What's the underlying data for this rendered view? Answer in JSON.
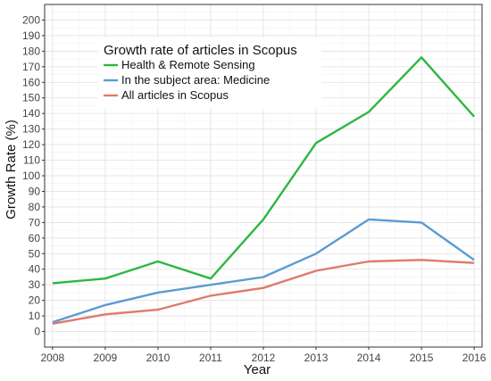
{
  "chart_data": {
    "type": "line",
    "title": "",
    "xlabel": "Year",
    "ylabel": "Growth Rate (%)",
    "x": [
      2008,
      2009,
      2010,
      2011,
      2012,
      2013,
      2014,
      2015,
      2016
    ],
    "ylim": [
      0,
      200
    ],
    "yticks": [
      0,
      10,
      20,
      30,
      40,
      50,
      60,
      70,
      80,
      90,
      100,
      110,
      120,
      130,
      140,
      150,
      160,
      170,
      180,
      190,
      200
    ],
    "grid": true,
    "legend": {
      "title": "Growth rate of articles in Scopus",
      "placement": "top-left"
    },
    "series": [
      {
        "name": "Health & Remote Sensing",
        "color": "#2db742",
        "values": [
          31,
          34,
          45,
          34,
          72,
          121,
          141,
          176,
          138
        ]
      },
      {
        "name": "In the subject area: Medicine",
        "color": "#5b9bd5",
        "values": [
          6,
          17,
          25,
          30,
          35,
          50,
          72,
          70,
          46
        ]
      },
      {
        "name": "All articles in Scopus",
        "color": "#e07a6e",
        "values": [
          5,
          11,
          14,
          23,
          28,
          39,
          45,
          46,
          44
        ]
      }
    ]
  }
}
